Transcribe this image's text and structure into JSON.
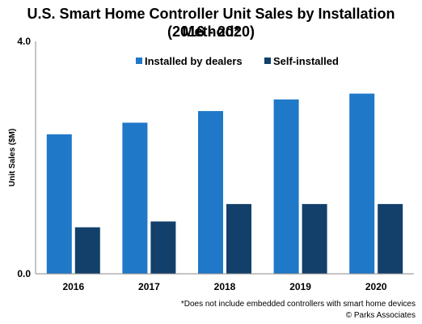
{
  "title_line1": "U.S. Smart Home Controller Unit Sales by Installation Method*",
  "title_line2": "(2016 - 2020)",
  "footnote": "*Does not include embedded controllers with smart home devices",
  "copyright": "© Parks Associates",
  "colors": {
    "dealers": "#1f78c8",
    "self": "#12406b",
    "axis": "#888888"
  },
  "chart_data": {
    "type": "bar",
    "title": "U.S. Smart Home Controller Unit Sales by Installation Method* (2016 - 2020)",
    "categories": [
      "2016",
      "2017",
      "2018",
      "2019",
      "2020"
    ],
    "series": [
      {
        "name": "Installed by dealers",
        "values": [
          2.4,
          2.6,
          2.8,
          3.0,
          3.1
        ]
      },
      {
        "name": "Self-installed",
        "values": [
          0.8,
          0.9,
          1.2,
          1.2,
          1.2
        ]
      }
    ],
    "ylabel": "Unit Sales ($M)",
    "ylim": [
      0,
      4
    ],
    "yticks": [
      "0.0",
      "4.0"
    ],
    "grid": false,
    "legend_position": "top"
  }
}
